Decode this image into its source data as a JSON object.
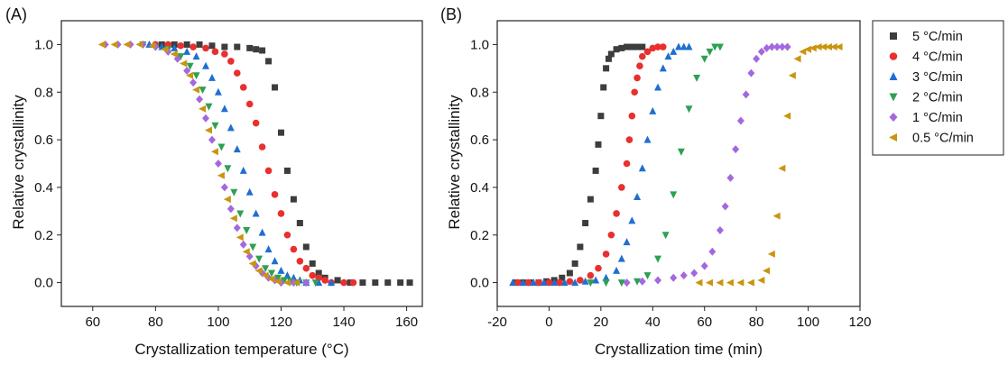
{
  "chart_data": [
    {
      "type": "scatter",
      "panel_label": "(A)",
      "xlabel": "Crystallization temperature (°C)",
      "ylabel": "Relative crystallinity",
      "xlim": [
        50,
        165
      ],
      "ylim": [
        -0.1,
        1.1
      ],
      "xticks": [
        60,
        80,
        100,
        120,
        140,
        160
      ],
      "yticks": [
        0.0,
        0.2,
        0.4,
        0.6,
        0.8,
        1.0
      ],
      "xtick_labels": [
        "60",
        "80",
        "100",
        "120",
        "140",
        "160"
      ],
      "ytick_labels": [
        "0.0",
        "0.2",
        "0.4",
        "0.6",
        "0.8",
        "1.0"
      ],
      "grid": false,
      "series": [
        {
          "name": "5 °C/min",
          "marker": "square",
          "color": "#3d3d3d",
          "x": [
            82,
            86,
            90,
            94,
            98,
            102,
            106,
            110,
            112,
            114,
            116,
            118,
            120,
            122,
            124,
            126,
            128,
            130,
            132,
            134,
            138,
            142,
            146,
            150,
            154,
            158,
            161
          ],
          "y": [
            1.0,
            1.0,
            1.0,
            1.0,
            0.995,
            0.99,
            0.99,
            0.985,
            0.98,
            0.975,
            0.93,
            0.82,
            0.63,
            0.47,
            0.35,
            0.25,
            0.15,
            0.08,
            0.04,
            0.02,
            0.01,
            0.0,
            0.0,
            0.0,
            0.0,
            0.0,
            0.0
          ]
        },
        {
          "name": "4 °C/min",
          "marker": "circle",
          "color": "#e8302e",
          "x": [
            80,
            84,
            88,
            92,
            96,
            99,
            102,
            104,
            106,
            108,
            110,
            112,
            114,
            116,
            118,
            120,
            122,
            124,
            126,
            128,
            130,
            132,
            134,
            136,
            140,
            143
          ],
          "y": [
            1.0,
            1.0,
            0.995,
            0.99,
            0.985,
            0.97,
            0.96,
            0.93,
            0.88,
            0.82,
            0.75,
            0.67,
            0.57,
            0.47,
            0.37,
            0.29,
            0.2,
            0.14,
            0.09,
            0.06,
            0.03,
            0.02,
            0.01,
            0.0,
            0.0,
            0.0
          ]
        },
        {
          "name": "3 °C/min",
          "marker": "triangle-up",
          "color": "#1f6fd1",
          "x": [
            78,
            82,
            86,
            90,
            93,
            96,
            98,
            100,
            102,
            104,
            106,
            108,
            110,
            112,
            114,
            116,
            118,
            120,
            122,
            124,
            126,
            128,
            132,
            136
          ],
          "y": [
            1.0,
            0.99,
            0.985,
            0.97,
            0.95,
            0.91,
            0.86,
            0.8,
            0.73,
            0.65,
            0.56,
            0.47,
            0.38,
            0.29,
            0.21,
            0.14,
            0.09,
            0.05,
            0.03,
            0.02,
            0.01,
            0.0,
            0.0,
            0.0
          ]
        },
        {
          "name": "2 °C/min",
          "marker": "triangle-down",
          "color": "#2ea052",
          "x": [
            76,
            80,
            84,
            88,
            91,
            93,
            95,
            97,
            99,
            101,
            103,
            105,
            107,
            109,
            111,
            113,
            115,
            117,
            119,
            121,
            123,
            125,
            128,
            131
          ],
          "y": [
            1.0,
            0.99,
            0.98,
            0.95,
            0.91,
            0.87,
            0.81,
            0.74,
            0.66,
            0.57,
            0.48,
            0.38,
            0.29,
            0.22,
            0.15,
            0.1,
            0.06,
            0.04,
            0.02,
            0.01,
            0.005,
            0.0,
            0.0,
            0.0
          ]
        },
        {
          "name": "1 °C/min",
          "marker": "diamond",
          "color": "#a368e0",
          "x": [
            64,
            68,
            72,
            76,
            80,
            84,
            87,
            90,
            92,
            94,
            96,
            98,
            100,
            102,
            104,
            106,
            108,
            110,
            112,
            114,
            116,
            118,
            120,
            124,
            128
          ],
          "y": [
            1.0,
            1.0,
            1.0,
            1.0,
            0.99,
            0.97,
            0.94,
            0.89,
            0.84,
            0.77,
            0.69,
            0.6,
            0.5,
            0.4,
            0.31,
            0.23,
            0.16,
            0.11,
            0.07,
            0.04,
            0.02,
            0.01,
            0.0,
            0.0,
            0.0
          ]
        },
        {
          "name": "0.5 °C/min",
          "marker": "triangle-left",
          "color": "#c9950f",
          "x": [
            63,
            67,
            71,
            75,
            79,
            83,
            86,
            89,
            91,
            93,
            95,
            97,
            99,
            101,
            103,
            105,
            107,
            109,
            111,
            113,
            115,
            117,
            119,
            122,
            125
          ],
          "y": [
            1.0,
            1.0,
            1.0,
            1.0,
            0.995,
            0.98,
            0.96,
            0.92,
            0.87,
            0.81,
            0.73,
            0.64,
            0.55,
            0.45,
            0.35,
            0.27,
            0.19,
            0.13,
            0.08,
            0.05,
            0.03,
            0.015,
            0.005,
            0.0,
            0.0
          ]
        }
      ]
    },
    {
      "type": "scatter",
      "panel_label": "(B)",
      "xlabel": "Crystallization time (min)",
      "ylabel": "Relative crystallinity",
      "xlim": [
        -20,
        120
      ],
      "ylim": [
        -0.1,
        1.1
      ],
      "xticks": [
        -20,
        0,
        20,
        40,
        60,
        80,
        100,
        120
      ],
      "yticks": [
        0.0,
        0.2,
        0.4,
        0.6,
        0.8,
        1.0
      ],
      "xtick_labels": [
        "-20",
        "0",
        "20",
        "40",
        "60",
        "80",
        "100",
        "120"
      ],
      "ytick_labels": [
        "0.0",
        "0.2",
        "0.4",
        "0.6",
        "0.8",
        "1.0"
      ],
      "grid": false,
      "series": [
        {
          "name": "5 °C/min",
          "marker": "square",
          "color": "#3d3d3d",
          "x": [
            -13,
            -10,
            -7,
            -4,
            -1,
            2,
            5,
            8,
            10,
            12,
            14,
            16,
            18,
            19,
            20,
            21,
            22,
            23,
            24,
            26,
            28,
            30,
            32,
            34,
            36
          ],
          "y": [
            0.0,
            0.0,
            0.0,
            0.0,
            0.005,
            0.01,
            0.02,
            0.04,
            0.08,
            0.15,
            0.25,
            0.35,
            0.47,
            0.58,
            0.7,
            0.82,
            0.9,
            0.94,
            0.96,
            0.98,
            0.985,
            0.99,
            0.99,
            0.99,
            0.99
          ]
        },
        {
          "name": "4 °C/min",
          "marker": "circle",
          "color": "#e8302e",
          "x": [
            -12,
            -8,
            -4,
            0,
            4,
            8,
            12,
            16,
            19,
            22,
            24,
            26,
            28,
            30,
            31,
            32,
            33,
            34,
            35,
            36,
            38,
            40,
            42,
            44
          ],
          "y": [
            0.0,
            0.0,
            0.0,
            0.0,
            0.0,
            0.005,
            0.01,
            0.03,
            0.06,
            0.12,
            0.2,
            0.29,
            0.4,
            0.5,
            0.6,
            0.7,
            0.8,
            0.86,
            0.91,
            0.95,
            0.97,
            0.985,
            0.99,
            0.99
          ]
        },
        {
          "name": "3 °C/min",
          "marker": "triangle-up",
          "color": "#1f6fd1",
          "x": [
            -14,
            -10,
            -6,
            -2,
            2,
            6,
            10,
            14,
            18,
            22,
            26,
            28,
            30,
            32,
            34,
            36,
            38,
            40,
            42,
            44,
            46,
            48,
            50,
            52,
            54
          ],
          "y": [
            0.0,
            0.0,
            0.0,
            0.0,
            0.0,
            0.0,
            0.0,
            0.005,
            0.01,
            0.02,
            0.05,
            0.1,
            0.17,
            0.26,
            0.36,
            0.48,
            0.6,
            0.72,
            0.82,
            0.9,
            0.95,
            0.97,
            0.99,
            0.99,
            0.99
          ]
        },
        {
          "name": "2 °C/min",
          "marker": "triangle-down",
          "color": "#2ea052",
          "x": [
            16,
            22,
            28,
            34,
            38,
            42,
            45,
            48,
            51,
            54,
            57,
            60,
            62,
            64,
            66
          ],
          "y": [
            0.0,
            0.0,
            0.0,
            0.005,
            0.03,
            0.1,
            0.2,
            0.37,
            0.55,
            0.73,
            0.86,
            0.94,
            0.97,
            0.99,
            0.99
          ]
        },
        {
          "name": "1 °C/min",
          "marker": "diamond",
          "color": "#a368e0",
          "x": [
            30,
            36,
            42,
            48,
            52,
            56,
            60,
            63,
            66,
            68,
            70,
            72,
            74,
            76,
            78,
            80,
            82,
            84,
            86,
            88,
            90,
            92
          ],
          "y": [
            0.0,
            0.005,
            0.01,
            0.02,
            0.03,
            0.04,
            0.07,
            0.13,
            0.22,
            0.32,
            0.44,
            0.56,
            0.68,
            0.79,
            0.88,
            0.94,
            0.97,
            0.985,
            0.99,
            0.99,
            0.99,
            0.99
          ]
        },
        {
          "name": "0.5 °C/min",
          "marker": "triangle-left",
          "color": "#c9950f",
          "x": [
            58,
            62,
            66,
            70,
            74,
            78,
            82,
            84,
            86,
            88,
            90,
            92,
            94,
            96,
            98,
            100,
            102,
            104,
            106,
            108,
            110,
            112
          ],
          "y": [
            0.0,
            0.0,
            0.0,
            0.0,
            0.0,
            0.0,
            0.01,
            0.05,
            0.12,
            0.28,
            0.48,
            0.7,
            0.87,
            0.94,
            0.97,
            0.98,
            0.985,
            0.99,
            0.99,
            0.99,
            0.99,
            0.99
          ]
        }
      ]
    }
  ],
  "legend": {
    "placement": "right",
    "entries": [
      {
        "label": "5 °C/min",
        "marker": "square",
        "color": "#3d3d3d"
      },
      {
        "label": "4 °C/min",
        "marker": "circle",
        "color": "#e8302e"
      },
      {
        "label": "3 °C/min",
        "marker": "triangle-up",
        "color": "#1f6fd1"
      },
      {
        "label": "2 °C/min",
        "marker": "triangle-down",
        "color": "#2ea052"
      },
      {
        "label": "1 °C/min",
        "marker": "diamond",
        "color": "#a368e0"
      },
      {
        "label": "0.5 °C/min",
        "marker": "triangle-left",
        "color": "#c9950f"
      }
    ]
  }
}
